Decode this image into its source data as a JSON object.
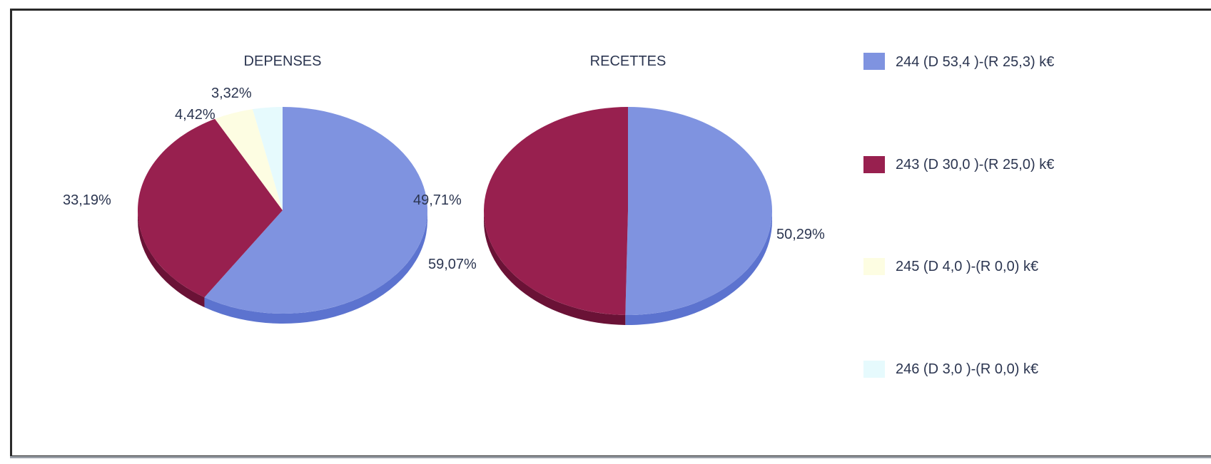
{
  "chart_data": [
    {
      "type": "pie",
      "title": "DEPENSES",
      "categories": [
        "244 (D 53,4 )-(R 25,3) k€",
        "243 (D 30,0 )-(R 25,0) k€",
        "245 (D 4,0 )-(R 0,0) k€",
        "246 (D 3,0 )-(R 0,0) k€"
      ],
      "values": [
        59.07,
        33.19,
        4.42,
        3.32
      ],
      "labels": [
        "59,07%",
        "33,19%",
        "4,42%",
        "3,32%"
      ]
    },
    {
      "type": "pie",
      "title": "RECETTES",
      "categories": [
        "244 (D 53,4 )-(R 25,3) k€",
        "243 (D 30,0 )-(R 25,0) k€",
        "245 (D 4,0 )-(R 0,0) k€",
        "246 (D 3,0 )-(R 0,0) k€"
      ],
      "values": [
        50.29,
        49.71,
        0,
        0
      ],
      "labels": [
        "50,29%",
        "49,71%"
      ]
    }
  ],
  "legend": [
    {
      "label": "244 (D 53,4 )-(R 25,3) k€",
      "color": "#7f93e0"
    },
    {
      "label": "243 (D 30,0 )-(R 25,0) k€",
      "color": "#98204f"
    },
    {
      "label": "245 (D 4,0 )-(R 0,0) k€",
      "color": "#fdfde2"
    },
    {
      "label": "246 (D 3,0 )-(R 0,0) k€",
      "color": "#e6fafd"
    }
  ],
  "colors": {
    "series_244": "#7f93e0",
    "series_244_side": "#5c73cf",
    "series_243": "#98204f",
    "series_243_side": "#6a1236",
    "series_245": "#fdfde2",
    "series_246": "#e6fafd",
    "text": "#2b3550"
  }
}
